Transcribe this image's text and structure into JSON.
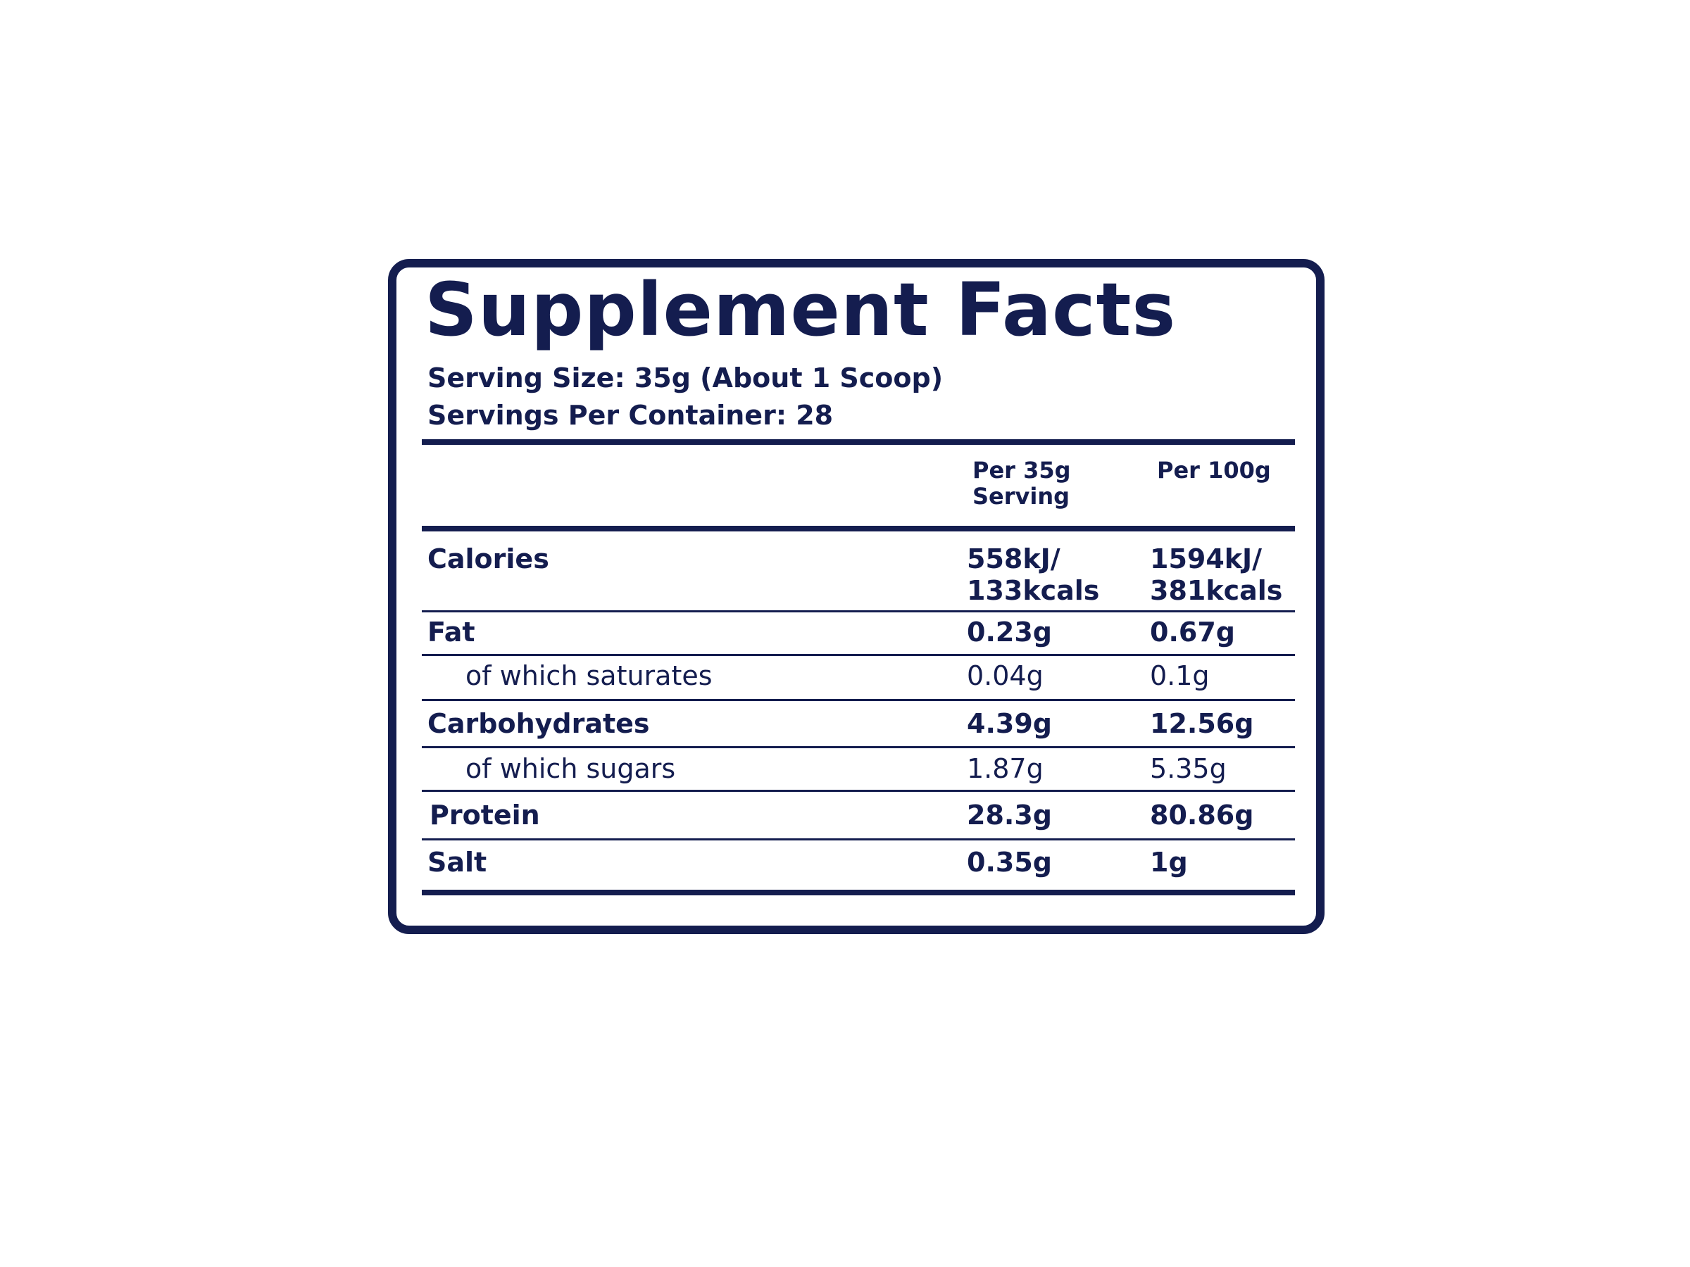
{
  "label": {
    "title": "Supplement Facts",
    "serving_size": "Serving Size: 35g (About 1 Scoop)",
    "servings_per_container": "Servings Per Container: 28",
    "columns": {
      "per_serving_line1": "Per 35g",
      "per_serving_line2": "Serving",
      "per_100g": "Per 100g"
    },
    "rows": [
      {
        "name": "Calories",
        "per_serving": "558kJ/",
        "per_serving_2": "133kcals",
        "per_100g": "1594kJ/",
        "per_100g_2": "381kcals"
      },
      {
        "name": "Fat",
        "per_serving": "0.23g",
        "per_100g": "0.67g"
      },
      {
        "name": "of which saturates",
        "per_serving": "0.04g",
        "per_100g": "0.1g"
      },
      {
        "name": "Carbohydrates",
        "per_serving": "4.39g",
        "per_100g": "12.56g"
      },
      {
        "name": "of which sugars",
        "per_serving": "1.87g",
        "per_100g": "5.35g"
      },
      {
        "name": "Protein",
        "per_serving": "28.3g",
        "per_100g": "80.86g"
      },
      {
        "name": "Salt",
        "per_serving": "0.35g",
        "per_100g": "1g"
      }
    ],
    "colors": {
      "ink": "#141d4f",
      "background": "#ffffff"
    }
  }
}
